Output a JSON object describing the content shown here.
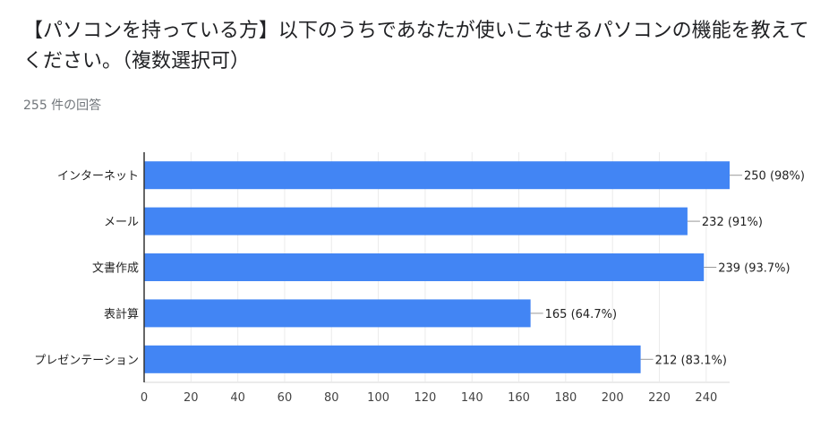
{
  "title": "【パソコンを持っている方】以下のうちであなたが使いこなせるパソコンの機能を教えてください。（複数選択可）",
  "response_count": "255 件の回答",
  "chart_data": {
    "type": "bar",
    "orientation": "horizontal",
    "categories": [
      "インターネット",
      "メール",
      "文書作成",
      "表計算",
      "プレゼンテーション"
    ],
    "values": [
      250,
      232,
      239,
      165,
      212
    ],
    "data_labels": [
      "250 (98%)",
      "232 (91%)",
      "239 (93.7%)",
      "165 (64.7%)",
      "212 (83.1%)"
    ],
    "xlim": [
      0,
      250
    ],
    "xticks": [
      0,
      20,
      40,
      60,
      80,
      100,
      120,
      140,
      160,
      180,
      200,
      220,
      240
    ],
    "grid": true,
    "bar_color": "#4285f4"
  }
}
